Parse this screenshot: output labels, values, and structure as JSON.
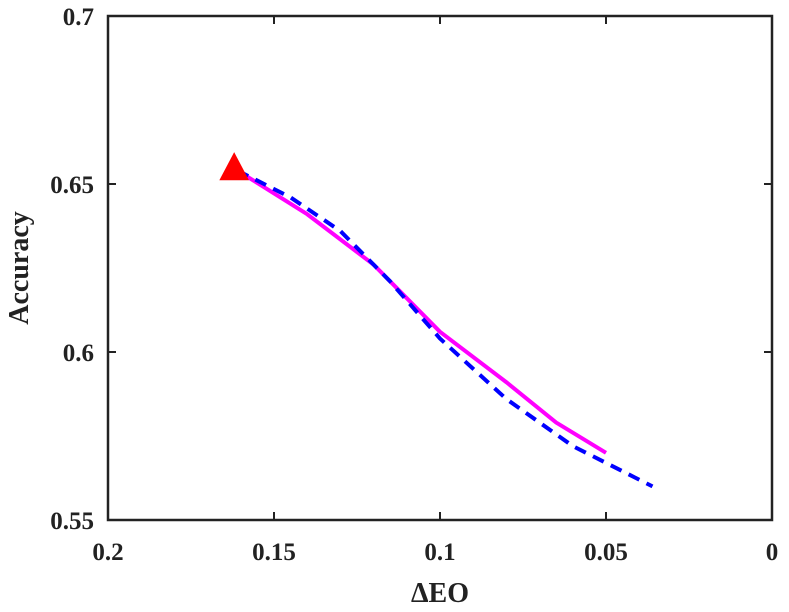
{
  "chart_data": {
    "type": "line",
    "title": "",
    "xlabel": "ΔEO",
    "ylabel": "Accuracy",
    "xlim": [
      0.2,
      0
    ],
    "ylim": [
      0.55,
      0.7
    ],
    "x_reversed": true,
    "grid": false,
    "xticks": [
      0.2,
      0.15,
      0.1,
      0.05,
      0
    ],
    "xtick_labels": [
      "0.2",
      "0.15",
      "0.1",
      "0.05",
      "0"
    ],
    "yticks": [
      0.55,
      0.6,
      0.65,
      0.7
    ],
    "ytick_labels": [
      "0.55",
      "0.6",
      "0.65",
      "0.7"
    ],
    "series": [
      {
        "style": "solid",
        "color": "#ff00ff",
        "points": [
          [
            0.161,
            0.654
          ],
          [
            0.14,
            0.641
          ],
          [
            0.12,
            0.626
          ],
          [
            0.1,
            0.606
          ],
          [
            0.08,
            0.591
          ],
          [
            0.065,
            0.579
          ],
          [
            0.05,
            0.57
          ]
        ]
      },
      {
        "style": "dashed",
        "color": "#0000ff",
        "points": [
          [
            0.161,
            0.654
          ],
          [
            0.145,
            0.646
          ],
          [
            0.13,
            0.636
          ],
          [
            0.115,
            0.621
          ],
          [
            0.1,
            0.604
          ],
          [
            0.08,
            0.586
          ],
          [
            0.06,
            0.572
          ],
          [
            0.036,
            0.56
          ]
        ]
      }
    ],
    "markers": [
      {
        "shape": "triangle",
        "color": "#ff0000",
        "x": 0.162,
        "y": 0.655
      }
    ]
  }
}
